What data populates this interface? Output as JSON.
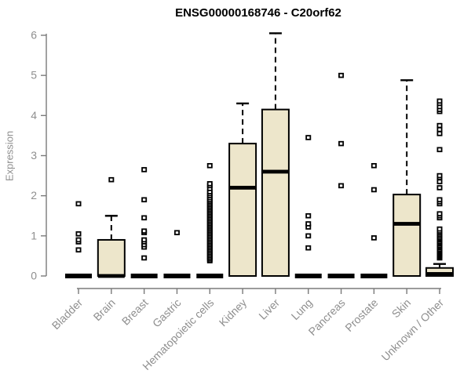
{
  "title": "ENSG00000168746 - C20orf62",
  "chart_data": {
    "type": "box",
    "title": "ENSG00000168746 - C20orf62",
    "xlabel": "",
    "ylabel": "Expression",
    "ylim": [
      0,
      6
    ],
    "yticks": [
      0,
      1,
      2,
      3,
      4,
      5,
      6
    ],
    "grid": false,
    "colors": {
      "box_fill": "#EDE6CB",
      "box_stroke": "#000000",
      "median": "#000000",
      "outlier_stroke": "#000000",
      "axis": "#7a7a7a",
      "tick_label": "#8f8f8f",
      "title": "#000000"
    },
    "categories": [
      "Bladder",
      "Brain",
      "Breast",
      "Gastric",
      "Hematopoietic cells",
      "Kidney",
      "Liver",
      "Lung",
      "Pancreas",
      "Prostate",
      "Skin",
      "Unknown / Other"
    ],
    "series": [
      {
        "name": "Bladder",
        "q1": 0,
        "median": 0,
        "q3": 0,
        "whisker_low": 0,
        "whisker_high": 0,
        "outliers": [
          0.65,
          0.85,
          0.9,
          1.05,
          1.8
        ]
      },
      {
        "name": "Brain",
        "q1": 0,
        "median": 0,
        "q3": 0.9,
        "whisker_low": 0,
        "whisker_high": 1.5,
        "outliers": [
          2.4
        ]
      },
      {
        "name": "Breast",
        "q1": 0,
        "median": 0,
        "q3": 0,
        "whisker_low": 0,
        "whisker_high": 0,
        "outliers": [
          0.45,
          0.72,
          0.78,
          0.85,
          0.9,
          1.08,
          1.12,
          1.45,
          1.9,
          2.65
        ]
      },
      {
        "name": "Gastric",
        "q1": 0,
        "median": 0,
        "q3": 0,
        "whisker_low": 0,
        "whisker_high": 0,
        "outliers": [
          1.08
        ]
      },
      {
        "name": "Hematopoietic cells",
        "q1": 0,
        "median": 0,
        "q3": 0,
        "whisker_low": 0,
        "whisker_high": 0,
        "outliers": [
          0.38,
          0.42,
          0.46,
          0.5,
          0.54,
          0.58,
          0.62,
          0.66,
          0.7,
          0.74,
          0.78,
          0.82,
          0.86,
          0.9,
          0.94,
          0.98,
          1.02,
          1.06,
          1.1,
          1.14,
          1.18,
          1.22,
          1.26,
          1.3,
          1.34,
          1.38,
          1.42,
          1.46,
          1.5,
          1.54,
          1.58,
          1.62,
          1.66,
          1.7,
          1.74,
          1.78,
          1.82,
          1.86,
          1.9,
          1.95,
          2.0,
          2.05,
          2.1,
          2.18,
          2.25,
          2.3,
          2.75
        ]
      },
      {
        "name": "Kidney",
        "q1": 0,
        "median": 2.2,
        "q3": 3.3,
        "whisker_low": 0,
        "whisker_high": 4.3,
        "outliers": []
      },
      {
        "name": "Liver",
        "q1": 0,
        "median": 2.6,
        "q3": 4.15,
        "whisker_low": 0,
        "whisker_high": 6.05,
        "outliers": []
      },
      {
        "name": "Lung",
        "q1": 0,
        "median": 0,
        "q3": 0,
        "whisker_low": 0,
        "whisker_high": 0,
        "outliers": [
          0.7,
          1.0,
          1.22,
          1.3,
          1.5,
          3.45
        ]
      },
      {
        "name": "Pancreas",
        "q1": 0,
        "median": 0,
        "q3": 0,
        "whisker_low": 0,
        "whisker_high": 0,
        "outliers": [
          2.25,
          3.3,
          5.0
        ]
      },
      {
        "name": "Prostate",
        "q1": 0,
        "median": 0,
        "q3": 0,
        "whisker_low": 0,
        "whisker_high": 0,
        "outliers": [
          0.95,
          2.15,
          2.75
        ]
      },
      {
        "name": "Skin",
        "q1": 0,
        "median": 1.3,
        "q3": 2.03,
        "whisker_low": 0,
        "whisker_high": 4.88,
        "outliers": []
      },
      {
        "name": "Unknown / Other",
        "q1": 0,
        "median": 0.05,
        "q3": 0.2,
        "whisker_low": 0,
        "whisker_high": 0.3,
        "outliers": [
          0.45,
          0.48,
          0.51,
          0.54,
          0.57,
          0.6,
          0.63,
          0.66,
          0.7,
          0.73,
          0.76,
          0.8,
          0.83,
          0.86,
          0.9,
          0.93,
          0.96,
          1.0,
          1.04,
          1.08,
          1.12,
          1.17,
          1.45,
          1.5,
          1.55,
          1.8,
          1.85,
          1.9,
          2.2,
          2.35,
          2.45,
          2.5,
          3.15,
          3.55,
          3.65,
          3.75,
          4.1,
          4.15,
          4.22,
          4.3,
          4.36
        ]
      }
    ]
  }
}
